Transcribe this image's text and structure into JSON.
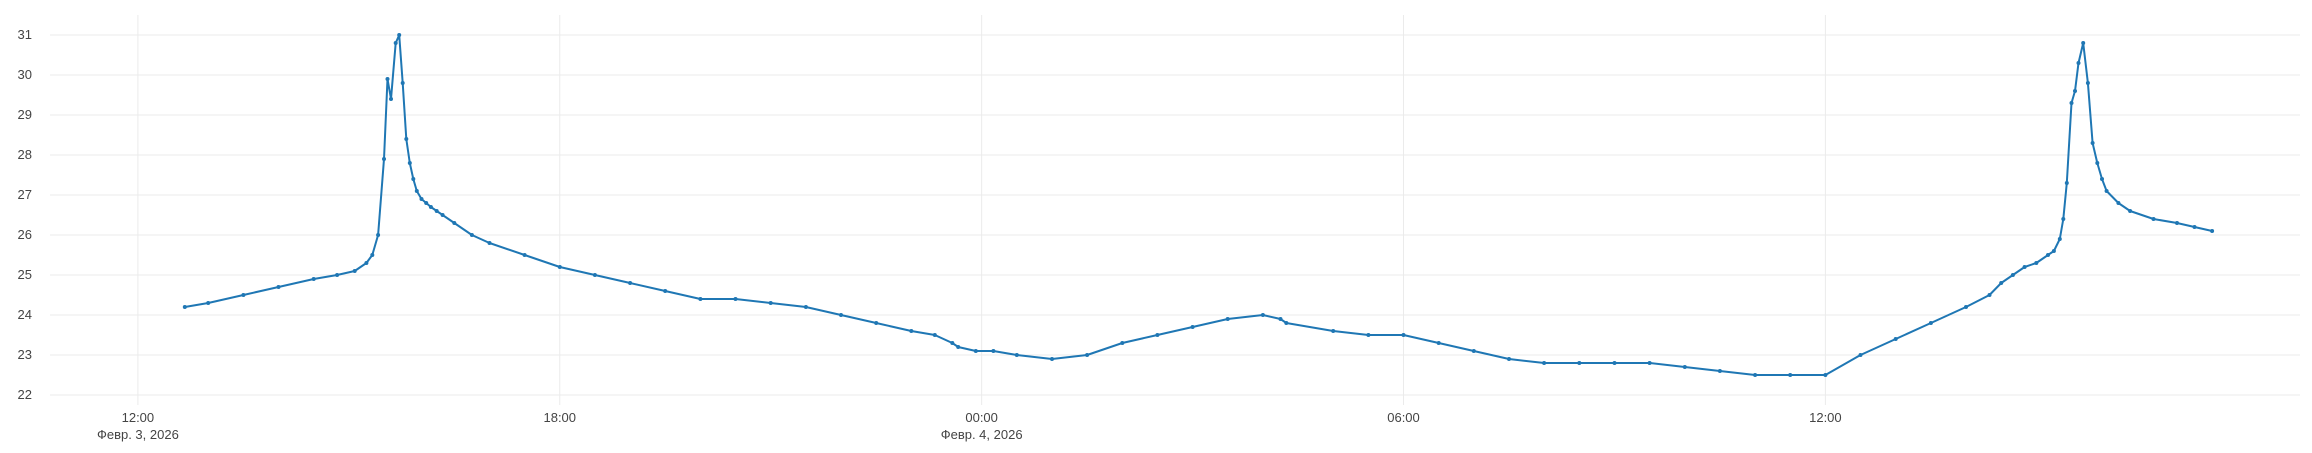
{
  "chart_data": {
    "type": "line",
    "x_unit": "datetime",
    "xlim": [
      "2026-02-03T10:45",
      "2026-02-04T18:45"
    ],
    "ylim": [
      21.75,
      31.5
    ],
    "x_ticks": [
      {
        "t": "2026-02-03T12:00",
        "label": "12:00",
        "date_label": "Февр. 3, 2026"
      },
      {
        "t": "2026-02-03T18:00",
        "label": "18:00",
        "date_label": ""
      },
      {
        "t": "2026-02-04T00:00",
        "label": "00:00",
        "date_label": "Февр. 4, 2026"
      },
      {
        "t": "2026-02-04T06:00",
        "label": "06:00",
        "date_label": ""
      },
      {
        "t": "2026-02-04T12:00",
        "label": "12:00",
        "date_label": ""
      }
    ],
    "y_ticks": [
      22,
      23,
      24,
      25,
      26,
      27,
      28,
      29,
      30,
      31
    ],
    "grid": true,
    "legend": "none",
    "color": "#1f77b4",
    "series": [
      {
        "x": [
          "2026-02-03T12:40",
          "2026-02-03T13:00",
          "2026-02-03T13:30",
          "2026-02-03T14:00",
          "2026-02-03T14:30",
          "2026-02-03T14:50",
          "2026-02-03T15:05",
          "2026-02-03T15:15",
          "2026-02-03T15:20",
          "2026-02-03T15:25",
          "2026-02-03T15:30",
          "2026-02-03T15:33",
          "2026-02-03T15:36",
          "2026-02-03T15:40",
          "2026-02-03T15:43",
          "2026-02-03T15:46",
          "2026-02-03T15:49",
          "2026-02-03T15:52",
          "2026-02-03T15:55",
          "2026-02-03T15:58",
          "2026-02-03T16:02",
          "2026-02-03T16:06",
          "2026-02-03T16:10",
          "2026-02-03T16:15",
          "2026-02-03T16:20",
          "2026-02-03T16:30",
          "2026-02-03T16:45",
          "2026-02-03T17:00",
          "2026-02-03T17:30",
          "2026-02-03T18:00",
          "2026-02-03T18:30",
          "2026-02-03T19:00",
          "2026-02-03T19:30",
          "2026-02-03T20:00",
          "2026-02-03T20:30",
          "2026-02-03T21:00",
          "2026-02-03T21:30",
          "2026-02-03T22:00",
          "2026-02-03T22:30",
          "2026-02-03T23:00",
          "2026-02-03T23:20",
          "2026-02-03T23:35",
          "2026-02-03T23:40",
          "2026-02-03T23:55",
          "2026-02-04T00:10",
          "2026-02-04T00:30",
          "2026-02-04T01:00",
          "2026-02-04T01:30",
          "2026-02-04T02:00",
          "2026-02-04T02:30",
          "2026-02-04T03:00",
          "2026-02-04T03:30",
          "2026-02-04T04:00",
          "2026-02-04T04:15",
          "2026-02-04T04:20",
          "2026-02-04T05:00",
          "2026-02-04T05:30",
          "2026-02-04T06:00",
          "2026-02-04T06:30",
          "2026-02-04T07:00",
          "2026-02-04T07:30",
          "2026-02-04T08:00",
          "2026-02-04T08:30",
          "2026-02-04T09:00",
          "2026-02-04T09:30",
          "2026-02-04T10:00",
          "2026-02-04T10:30",
          "2026-02-04T11:00",
          "2026-02-04T11:30",
          "2026-02-04T12:00",
          "2026-02-04T12:30",
          "2026-02-04T13:00",
          "2026-02-04T13:30",
          "2026-02-04T14:00",
          "2026-02-04T14:20",
          "2026-02-04T14:30",
          "2026-02-04T14:40",
          "2026-02-04T14:50",
          "2026-02-04T15:00",
          "2026-02-04T15:10",
          "2026-02-04T15:15",
          "2026-02-04T15:20",
          "2026-02-04T15:23",
          "2026-02-04T15:26",
          "2026-02-04T15:30",
          "2026-02-04T15:33",
          "2026-02-04T15:36",
          "2026-02-04T15:40",
          "2026-02-04T15:44",
          "2026-02-04T15:48",
          "2026-02-04T15:52",
          "2026-02-04T15:56",
          "2026-02-04T16:00",
          "2026-02-04T16:10",
          "2026-02-04T16:20",
          "2026-02-04T16:40",
          "2026-02-04T17:00",
          "2026-02-04T17:15",
          "2026-02-04T17:30"
        ],
        "values": [
          24.2,
          24.3,
          24.5,
          24.7,
          24.9,
          25.0,
          25.1,
          25.3,
          25.5,
          26.0,
          27.9,
          29.9,
          29.4,
          30.8,
          31.0,
          29.8,
          28.4,
          27.8,
          27.4,
          27.1,
          26.9,
          26.8,
          26.7,
          26.6,
          26.5,
          26.3,
          26.0,
          25.8,
          25.5,
          25.2,
          25.0,
          24.8,
          24.6,
          24.4,
          24.4,
          24.3,
          24.2,
          24.0,
          23.8,
          23.6,
          23.5,
          23.3,
          23.2,
          23.1,
          23.1,
          23.0,
          22.9,
          23.0,
          23.3,
          23.5,
          23.7,
          23.9,
          24.0,
          23.9,
          23.8,
          23.6,
          23.5,
          23.5,
          23.3,
          23.1,
          22.9,
          22.8,
          22.8,
          22.8,
          22.8,
          22.7,
          22.6,
          22.5,
          22.5,
          22.5,
          23.0,
          23.4,
          23.8,
          24.2,
          24.5,
          24.8,
          25.0,
          25.2,
          25.3,
          25.5,
          25.6,
          25.9,
          26.4,
          27.3,
          29.3,
          29.6,
          30.3,
          30.8,
          29.8,
          28.3,
          27.8,
          27.4,
          27.1,
          26.8,
          26.6,
          26.4,
          26.3,
          26.2,
          26.1
        ]
      }
    ]
  }
}
